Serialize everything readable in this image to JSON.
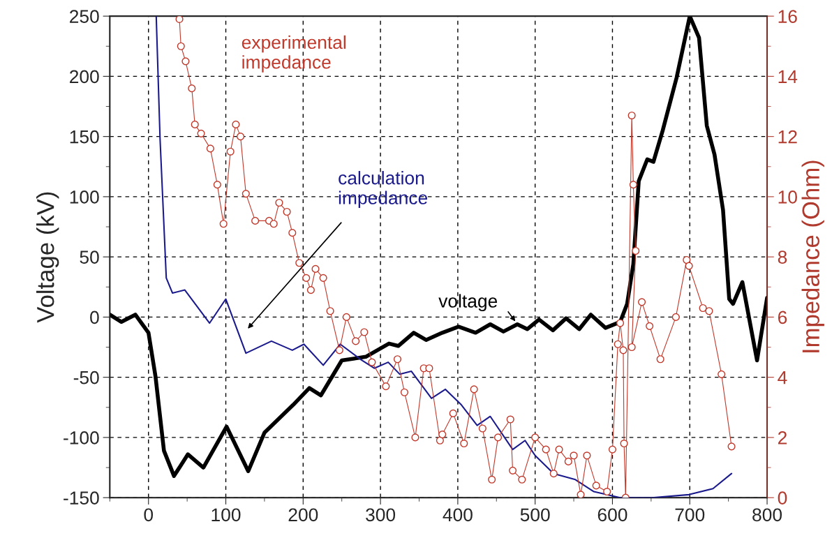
{
  "chart_data": {
    "type": "line",
    "ylabel": "Voltage (kV)",
    "y2label": "Impedance (Ohm)",
    "xlim": [
      -50,
      800
    ],
    "xticks": [
      {
        "value": -50,
        "label": null
      },
      0,
      {
        "value": 50,
        "label": null
      },
      100,
      {
        "value": 150,
        "label": null
      },
      200,
      {
        "value": 250,
        "label": null
      },
      300,
      {
        "value": 350,
        "label": null
      },
      400,
      {
        "value": 450,
        "label": null
      },
      500,
      {
        "value": 550,
        "label": null
      },
      600,
      {
        "value": 650,
        "label": null
      },
      700,
      {
        "value": 750,
        "label": null
      },
      800
    ],
    "ylim": [
      -150,
      250
    ],
    "yticks": [
      -150,
      {
        "value": -125,
        "label": null
      },
      -100,
      {
        "value": -75,
        "label": null
      },
      -50,
      {
        "value": -25,
        "label": null
      },
      0,
      {
        "value": 25,
        "label": null
      },
      50,
      {
        "value": 75,
        "label": null
      },
      100,
      {
        "value": 125,
        "label": null
      },
      150,
      {
        "value": 175,
        "label": null
      },
      200,
      {
        "value": 225,
        "label": null
      },
      250
    ],
    "y2lim": [
      0,
      16
    ],
    "y2ticks": [
      0,
      {
        "value": 1,
        "label": null
      },
      2,
      {
        "value": 3,
        "label": null
      },
      4,
      {
        "value": 5,
        "label": null
      },
      6,
      {
        "value": 7,
        "label": null
      },
      8,
      {
        "value": 9,
        "label": null
      },
      10,
      {
        "value": 11,
        "label": null
      },
      12,
      {
        "value": 13,
        "label": null
      },
      14,
      {
        "value": 15,
        "label": null
      },
      16
    ],
    "grid": true,
    "legend": false,
    "series": [
      {
        "color": "#000000",
        "marker": "none",
        "x": [
          -50,
          -35,
          -17,
          0,
          9,
          20,
          33,
          51,
          71,
          101,
          129,
          150,
          187,
          208,
          223,
          250,
          281,
          311,
          323,
          343,
          359,
          380,
          401,
          423,
          442,
          459,
          477,
          490,
          505,
          523,
          540,
          557,
          572,
          591,
          610,
          619,
          627,
          634,
          645,
          653,
          665,
          683,
          700,
          712,
          722,
          732,
          743,
          751,
          756,
          768,
          787,
          800
        ],
        "values": [
          2,
          -4,
          2,
          -13,
          -49,
          -111,
          -132,
          -114,
          -125,
          -91,
          -128,
          -96,
          -73,
          -59,
          -65,
          -36,
          -33,
          -22,
          -24,
          -13,
          -19,
          -13,
          -8,
          -13,
          -6,
          -12,
          -6,
          -10,
          -2,
          -11,
          -1,
          -10,
          2,
          -9,
          -4,
          11,
          44,
          113,
          131,
          129,
          155,
          199,
          250,
          232,
          159,
          135,
          89,
          15,
          11,
          29,
          -36,
          16
        ]
      },
      {
        "color": "#1a1a8c",
        "marker": "none",
        "axis": "y2",
        "x": [
          10,
          15,
          23,
          31,
          47,
          79,
          100,
          126,
          159,
          186,
          201,
          226,
          248,
          274,
          292,
          310,
          325,
          340,
          366,
          384,
          404,
          425,
          442,
          471,
          487,
          500,
          524,
          552,
          576,
          610,
          651,
          699,
          730,
          754
        ],
        "values": [
          16,
          11.9,
          7.3,
          6.8,
          6.9,
          5.8,
          6.6,
          4.8,
          5.2,
          4.9,
          5.1,
          4.4,
          5.1,
          4.6,
          4.3,
          4.5,
          4.1,
          4.2,
          3.3,
          3.6,
          3.1,
          2.4,
          2.7,
          1.6,
          1.9,
          1.4,
          0.8,
          0.6,
          0.2,
          0,
          0,
          0.1,
          0.3,
          0.8
        ]
      },
      {
        "color": "#c0392b",
        "marker": "circle",
        "axis": "y2",
        "x": [
          40,
          42,
          48,
          56,
          60,
          68,
          80,
          89,
          97,
          106,
          113,
          119,
          126,
          138,
          156,
          162,
          169,
          179,
          186,
          195,
          204,
          210,
          216,
          226,
          235,
          247,
          256,
          268,
          279,
          289,
          307,
          322,
          331,
          345,
          356,
          363,
          377,
          380,
          394,
          408,
          421,
          432,
          444,
          452,
          468,
          471,
          483,
          500,
          514,
          524,
          531,
          543,
          550,
          559,
          567,
          579,
          593,
          600,
          607,
          610,
          614,
          615,
          617,
          625,
          627,
          630,
          625,
          638,
          648,
          662,
          682,
          696,
          699,
          717,
          725,
          741,
          754
        ],
        "values": [
          15.9,
          15.0,
          14.5,
          13.6,
          12.4,
          12.1,
          11.6,
          10.4,
          9.1,
          11.5,
          12.4,
          12.0,
          10.1,
          9.2,
          9.2,
          9.1,
          9.8,
          9.5,
          8.8,
          7.8,
          7.3,
          6.9,
          7.6,
          7.3,
          6.2,
          4.9,
          6.0,
          5.2,
          5.5,
          4.5,
          3.7,
          4.6,
          3.5,
          2.0,
          4.3,
          4.3,
          1.9,
          2.1,
          2.8,
          1.8,
          3.6,
          2.3,
          0.6,
          2.0,
          2.6,
          0.9,
          0.6,
          2.0,
          1.6,
          0.8,
          1.6,
          1.2,
          1.4,
          0.1,
          1.4,
          0.4,
          0.2,
          1.6,
          5.1,
          5.8,
          4.9,
          1.8,
          0,
          12.7,
          10.4,
          8.2,
          5.0,
          6.5,
          5.7,
          4.6,
          6.0,
          7.9,
          7.7,
          6.3,
          6.2,
          4.1,
          1.7
        ]
      }
    ],
    "annotations": [
      "voltage",
      "calculation\nimpedance",
      "experimental\nimpedance"
    ]
  }
}
